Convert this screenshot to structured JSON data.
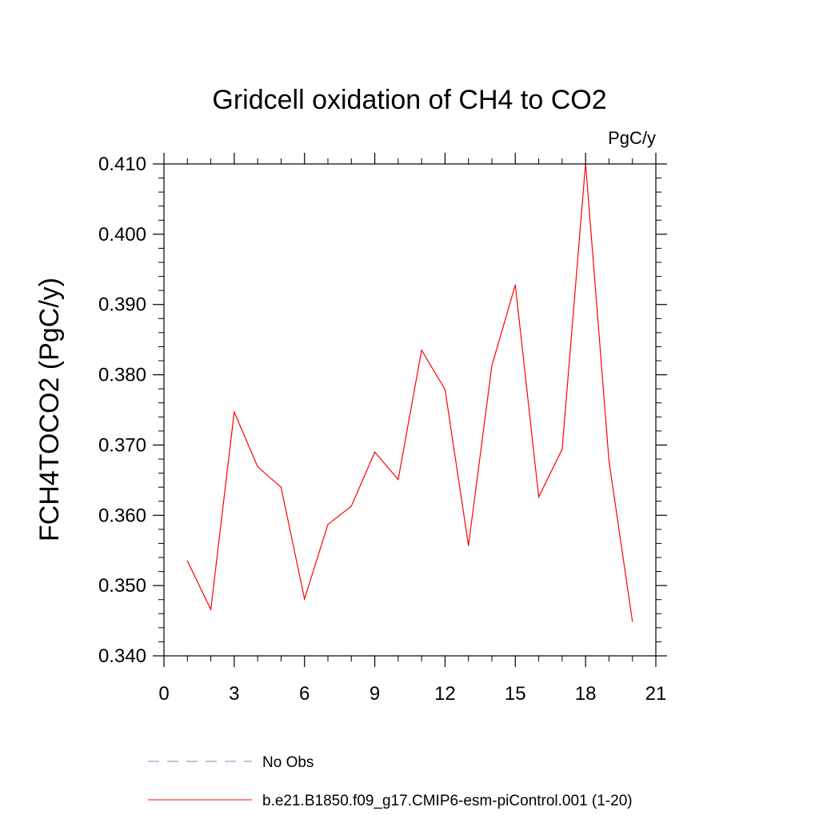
{
  "chart_data": {
    "type": "line",
    "title": "Gridcell oxidation of CH4 to CO2",
    "units": "PgC/y",
    "ylabel": "FCH4TOCO2  (PgC/y)",
    "xlabel": "",
    "xlim": [
      0,
      21
    ],
    "ylim": [
      0.34,
      0.41
    ],
    "xticks": [
      0,
      3,
      6,
      9,
      12,
      15,
      18,
      21
    ],
    "xtick_labels": [
      "0",
      "3",
      "6",
      "9",
      "12",
      "15",
      "18",
      "21"
    ],
    "yticks": [
      0.34,
      0.35,
      0.36,
      0.37,
      0.38,
      0.39,
      0.4,
      0.41
    ],
    "ytick_labels": [
      "0.340",
      "0.350",
      "0.360",
      "0.370",
      "0.380",
      "0.390",
      "0.400",
      "0.410"
    ],
    "x_minor_step": 1,
    "y_minor_step": 0.002,
    "grid": false,
    "legend_position": "bottom",
    "series": [
      {
        "name": "No Obs",
        "color": "#8c7dc8",
        "style": "dashed",
        "x": [],
        "values": []
      },
      {
        "name": "b.e21.B1850.f09_g17.CMIP6-esm-piControl.001 (1-20)",
        "color": "#ff0000",
        "style": "solid",
        "x": [
          1,
          2,
          3,
          4,
          5,
          6,
          7,
          8,
          9,
          10,
          11,
          12,
          13,
          14,
          15,
          16,
          17,
          18,
          19,
          20
        ],
        "values": [
          0.3535,
          0.3466,
          0.3747,
          0.3669,
          0.364,
          0.3481,
          0.3587,
          0.3613,
          0.369,
          0.3651,
          0.3835,
          0.3779,
          0.3557,
          0.3813,
          0.3928,
          0.3626,
          0.3694,
          0.4101,
          0.3677,
          0.3449
        ]
      }
    ]
  }
}
